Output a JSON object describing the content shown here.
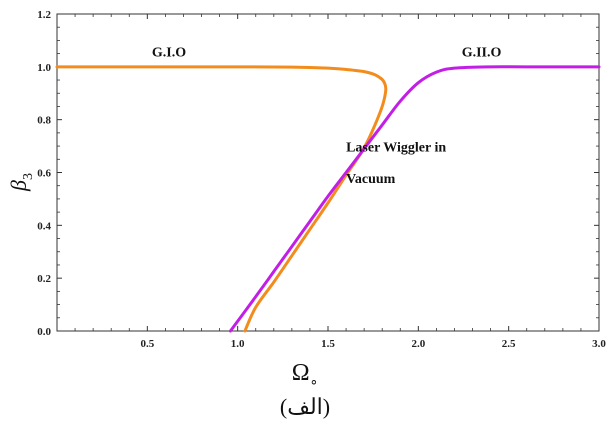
{
  "chart_data": {
    "type": "line",
    "title": "",
    "xlabel": "Ω",
    "xlabel_subscript": "∘",
    "ylabel": "β",
    "ylabel_subscript": "3",
    "xlim": [
      0,
      3.0
    ],
    "ylim": [
      0,
      1.2
    ],
    "x_ticks": [
      0.5,
      1.0,
      1.5,
      2.0,
      2.5,
      3.0
    ],
    "x_tick_labels": [
      "0.5",
      "1.0",
      "1.5",
      "2.0",
      "2.5",
      "3.0"
    ],
    "y_ticks": [
      0.0,
      0.2,
      0.4,
      0.6,
      0.8,
      1.0,
      1.2
    ],
    "y_tick_labels": [
      "0.0",
      "0.2",
      "0.4",
      "0.6",
      "0.8",
      "1.0",
      "1.2"
    ],
    "grid": false,
    "series": [
      {
        "name": "G.I.O",
        "color": "#f28c1c",
        "points": [
          [
            0.0,
            1.0
          ],
          [
            0.5,
            1.0
          ],
          [
            1.0,
            1.0
          ],
          [
            1.3,
            0.999
          ],
          [
            1.5,
            0.995
          ],
          [
            1.6,
            0.99
          ],
          [
            1.7,
            0.982
          ],
          [
            1.76,
            0.97
          ],
          [
            1.8,
            0.952
          ],
          [
            1.815,
            0.935
          ],
          [
            1.82,
            0.915
          ],
          [
            1.812,
            0.88
          ],
          [
            1.795,
            0.84
          ],
          [
            1.76,
            0.78
          ],
          [
            1.72,
            0.72
          ],
          [
            1.68,
            0.67
          ],
          [
            1.6,
            0.59
          ],
          [
            1.5,
            0.485
          ],
          [
            1.4,
            0.385
          ],
          [
            1.3,
            0.285
          ],
          [
            1.2,
            0.185
          ],
          [
            1.1,
            0.09
          ],
          [
            1.04,
            0.0
          ]
        ]
      },
      {
        "name": "G.II.O",
        "color": "#c21ee6",
        "points": [
          [
            0.96,
            0.0
          ],
          [
            1.1,
            0.13
          ],
          [
            1.2,
            0.225
          ],
          [
            1.3,
            0.32
          ],
          [
            1.4,
            0.415
          ],
          [
            1.5,
            0.51
          ],
          [
            1.6,
            0.6
          ],
          [
            1.7,
            0.69
          ],
          [
            1.8,
            0.78
          ],
          [
            1.9,
            0.87
          ],
          [
            2.0,
            0.94
          ],
          [
            2.1,
            0.98
          ],
          [
            2.2,
            0.995
          ],
          [
            2.4,
            1.0
          ],
          [
            2.6,
            1.0
          ],
          [
            3.0,
            1.0
          ]
        ]
      }
    ],
    "annotations": [
      {
        "text": "G.I.O",
        "x": 0.62,
        "y": 1.04
      },
      {
        "text": "G.II.O",
        "x": 2.35,
        "y": 1.04
      },
      {
        "text": "Laser Wiggler in",
        "x": 1.6,
        "y": 0.68
      },
      {
        "text": "Vacuum",
        "x": 1.6,
        "y": 0.56
      }
    ]
  },
  "caption": "(الف)"
}
